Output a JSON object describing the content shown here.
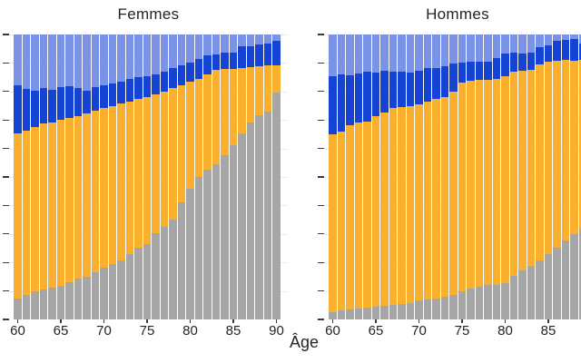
{
  "figure": {
    "xlabel": "Âge",
    "y_axis_labels_visible": false,
    "background": "#ffffff"
  },
  "colors": {
    "gray": "#a6a6a6",
    "orange": "#f8b02e",
    "dark_blue": "#1543d4",
    "light_blue": "#7b93e6",
    "gridline": "#e9e9e9",
    "tick": "#3a3a3a",
    "text": "#242424"
  },
  "chart_data": [
    {
      "type": "bar",
      "stacked": true,
      "normalized_percent": true,
      "title": "Femmes",
      "xlabel": "Âge",
      "ylabel": "",
      "ylim": [
        0,
        100
      ],
      "y_tick_step": 10,
      "grid": true,
      "legend": "none visible (cropped)",
      "x": [
        60,
        61,
        62,
        63,
        64,
        65,
        66,
        67,
        68,
        69,
        70,
        71,
        72,
        73,
        74,
        75,
        76,
        77,
        78,
        79,
        80,
        81,
        82,
        83,
        84,
        85,
        86,
        87,
        88,
        89,
        90
      ],
      "x_tick_ages": [
        60,
        65,
        70,
        75,
        80,
        85,
        90
      ],
      "x_tick_labels": [
        "60",
        "65",
        "70",
        "75",
        "80",
        "85",
        "90"
      ],
      "series": [
        {
          "name": "gris (bas)",
          "color_key": "gray",
          "values": [
            7.2,
            8.5,
            9.8,
            10.6,
            11.1,
            11.9,
            13.0,
            14.3,
            15.1,
            16.5,
            18.0,
            19.3,
            20.7,
            22.8,
            25.3,
            26.5,
            30.3,
            32.4,
            35.0,
            41.0,
            45.8,
            50.0,
            52.7,
            54.5,
            57.5,
            61.0,
            65.4,
            69.1,
            71.8,
            72.8,
            79.7
          ]
        },
        {
          "name": "orange",
          "color_key": "orange",
          "values": [
            58.1,
            57.8,
            57.6,
            58.2,
            58.1,
            58.2,
            57.8,
            57.0,
            57.1,
            56.7,
            56.1,
            55.5,
            55.0,
            53.8,
            52.0,
            51.5,
            48.8,
            47.7,
            46.2,
            41.3,
            37.5,
            34.4,
            33.3,
            33.2,
            30.5,
            26.9,
            22.9,
            19.5,
            17.2,
            16.4,
            9.6
          ]
        },
        {
          "name": "bleu foncé",
          "color_key": "dark_blue",
          "values": [
            16.9,
            14.7,
            12.8,
            12.4,
            11.5,
            11.4,
            11.1,
            9.9,
            8.2,
            8.3,
            8.2,
            8.0,
            7.9,
            7.8,
            7.8,
            7.5,
            6.9,
            6.9,
            6.9,
            6.9,
            6.9,
            6.9,
            6.6,
            5.3,
            5.7,
            5.6,
            7.6,
            7.3,
            7.5,
            7.7,
            8.5
          ]
        },
        {
          "name": "bleu clair (haut)",
          "color_key": "light_blue",
          "values": [
            17.8,
            19.0,
            19.8,
            18.8,
            19.3,
            18.5,
            18.1,
            18.8,
            19.6,
            18.5,
            17.7,
            17.2,
            16.4,
            15.6,
            14.9,
            14.5,
            14.0,
            13.0,
            11.9,
            10.8,
            9.8,
            8.7,
            7.4,
            7.0,
            6.3,
            6.5,
            4.1,
            4.1,
            3.5,
            3.1,
            2.2
          ]
        }
      ]
    },
    {
      "type": "bar",
      "stacked": true,
      "normalized_percent": true,
      "title": "Hommes",
      "xlabel": "Âge",
      "ylabel": "",
      "ylim": [
        0,
        100
      ],
      "y_tick_step": 10,
      "grid": true,
      "legend": "none visible (cropped)",
      "clipped_at_right_edge": true,
      "x": [
        60,
        61,
        62,
        63,
        64,
        65,
        66,
        67,
        68,
        69,
        70,
        71,
        72,
        73,
        74,
        75,
        76,
        77,
        78,
        79,
        80,
        81,
        82,
        83,
        84,
        85,
        86,
        87,
        88,
        89
      ],
      "x_tick_ages": [
        60,
        65,
        70,
        75,
        80,
        85
      ],
      "x_tick_labels": [
        "60",
        "65",
        "70",
        "75",
        "80",
        "85"
      ],
      "series": [
        {
          "name": "gris (bas)",
          "color_key": "gray",
          "values": [
            2.7,
            3.2,
            3.4,
            3.7,
            4.0,
            4.5,
            4.8,
            5.1,
            5.5,
            5.8,
            6.6,
            6.9,
            7.4,
            8.0,
            8.7,
            9.8,
            10.8,
            11.5,
            12.2,
            12.0,
            12.8,
            15.3,
            17.1,
            18.9,
            20.8,
            22.9,
            25.3,
            27.7,
            29.8,
            32.0
          ]
        },
        {
          "name": "orange",
          "color_key": "orange",
          "values": [
            62.3,
            62.6,
            64.8,
            65.3,
            65.5,
            66.8,
            67.9,
            69.0,
            69.0,
            69.0,
            69.0,
            69.5,
            69.9,
            70.0,
            71.4,
            73.2,
            72.9,
            72.6,
            71.8,
            72.5,
            72.4,
            71.8,
            70.2,
            68.8,
            68.7,
            67.4,
            65.6,
            63.5,
            61.1,
            59.0
          ]
        },
        {
          "name": "bleu foncé",
          "color_key": "dark_blue",
          "values": [
            20.5,
            20.2,
            17.6,
            17.2,
            17.5,
            15.2,
            14.6,
            12.9,
            12.3,
            11.7,
            11.7,
            11.7,
            11.0,
            10.9,
            9.6,
            7.0,
            6.6,
            6.3,
            6.5,
            7.1,
            8.1,
            6.4,
            6.0,
            5.8,
            5.9,
            5.9,
            6.9,
            6.8,
            7.4,
            5.7
          ]
        },
        {
          "name": "bleu clair (haut)",
          "color_key": "light_blue",
          "values": [
            14.5,
            14.0,
            14.2,
            13.8,
            13.0,
            13.5,
            12.7,
            13.0,
            13.2,
            13.5,
            12.7,
            11.9,
            11.7,
            11.1,
            10.3,
            10.0,
            9.7,
            9.6,
            9.5,
            8.4,
            6.7,
            6.5,
            6.7,
            6.5,
            4.6,
            3.8,
            2.2,
            2.0,
            1.7,
            3.3
          ]
        }
      ]
    }
  ]
}
